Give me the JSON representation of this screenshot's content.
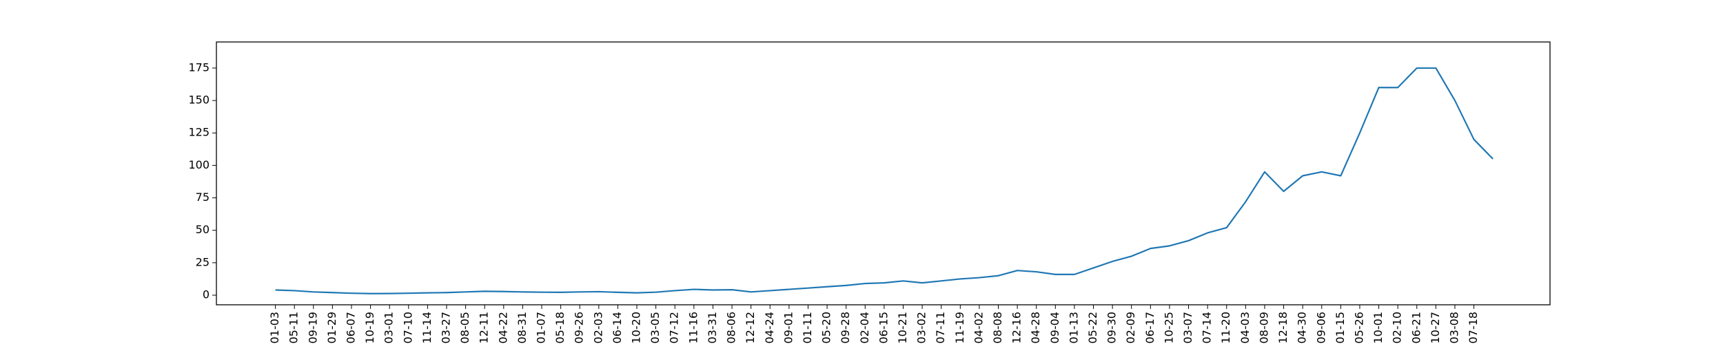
{
  "chart_data": {
    "type": "line",
    "color": "#1f77b4",
    "x": [
      0,
      1,
      2,
      3,
      4,
      5,
      6,
      7,
      8,
      9,
      10,
      11,
      12,
      13,
      14,
      15,
      16,
      17,
      18,
      19,
      20,
      21,
      22,
      23,
      24,
      25,
      26,
      27,
      28,
      29,
      30,
      31,
      32,
      33,
      34,
      35,
      36,
      37,
      38,
      39,
      40,
      41,
      42,
      43,
      44,
      45,
      46,
      47,
      48,
      49,
      50,
      51,
      52,
      53,
      54,
      55,
      56,
      57,
      58,
      59,
      60,
      61,
      62,
      63,
      64
    ],
    "values": [
      4,
      3.5,
      2.5,
      2,
      1.5,
      1.2,
      1.3,
      1.5,
      1.8,
      2,
      2.5,
      3,
      2.8,
      2.5,
      2.3,
      2.2,
      2.5,
      2.7,
      2.2,
      1.8,
      2.3,
      3.5,
      4.5,
      4,
      4.2,
      2.5,
      3.5,
      4.5,
      5.5,
      6.5,
      7.5,
      9,
      9.5,
      11,
      9.5,
      11,
      12.5,
      13.5,
      15,
      19,
      18,
      16,
      16,
      21,
      26,
      30,
      36,
      38,
      42,
      48,
      52,
      72,
      95,
      80,
      92,
      95,
      92,
      125,
      160,
      160,
      175,
      175,
      150,
      120,
      105
    ],
    "xlim": [
      -3.1,
      67.0
    ],
    "xticks": [
      {
        "value": 0,
        "label": "-01-03"
      },
      {
        "value": 1,
        "label": "-05-11"
      },
      {
        "value": 2,
        "label": "-09-19"
      },
      {
        "value": 3,
        "label": "-01-29"
      },
      {
        "value": 4,
        "label": "-06-07"
      },
      {
        "value": 5,
        "label": "-10-19"
      },
      {
        "value": 6,
        "label": "-03-01"
      },
      {
        "value": 7,
        "label": "-07-10"
      },
      {
        "value": 8,
        "label": "-11-14"
      },
      {
        "value": 9,
        "label": "-03-27"
      },
      {
        "value": 10,
        "label": "-08-05"
      },
      {
        "value": 11,
        "label": "-12-11"
      },
      {
        "value": 12,
        "label": "-04-22"
      },
      {
        "value": 13,
        "label": "-08-31"
      },
      {
        "value": 14,
        "label": "-01-07"
      },
      {
        "value": 15,
        "label": "-05-18"
      },
      {
        "value": 16,
        "label": "-09-26"
      },
      {
        "value": 17,
        "label": "-02-03"
      },
      {
        "value": 18,
        "label": "-06-14"
      },
      {
        "value": 19,
        "label": "-10-20"
      },
      {
        "value": 20,
        "label": "-03-05"
      },
      {
        "value": 21,
        "label": "-07-12"
      },
      {
        "value": 22,
        "label": "-11-16"
      },
      {
        "value": 23,
        "label": "-03-31"
      },
      {
        "value": 24,
        "label": "-08-06"
      },
      {
        "value": 25,
        "label": "-12-12"
      },
      {
        "value": 26,
        "label": "-04-24"
      },
      {
        "value": 27,
        "label": "-09-01"
      },
      {
        "value": 28,
        "label": "-01-11"
      },
      {
        "value": 29,
        "label": "-05-20"
      },
      {
        "value": 30,
        "label": "-09-28"
      },
      {
        "value": 31,
        "label": "-02-04"
      },
      {
        "value": 32,
        "label": "-06-15"
      },
      {
        "value": 33,
        "label": "-10-21"
      },
      {
        "value": 34,
        "label": "-03-02"
      },
      {
        "value": 35,
        "label": "-07-11"
      },
      {
        "value": 36,
        "label": "-11-19"
      },
      {
        "value": 37,
        "label": "-04-02"
      },
      {
        "value": 38,
        "label": "-08-08"
      },
      {
        "value": 39,
        "label": "-12-16"
      },
      {
        "value": 40,
        "label": "-04-28"
      },
      {
        "value": 41,
        "label": "-09-04"
      },
      {
        "value": 42,
        "label": "-01-13"
      },
      {
        "value": 43,
        "label": "-05-22"
      },
      {
        "value": 44,
        "label": "-09-30"
      },
      {
        "value": 45,
        "label": "-02-09"
      },
      {
        "value": 46,
        "label": "-06-17"
      },
      {
        "value": 47,
        "label": "-10-25"
      },
      {
        "value": 48,
        "label": "-03-07"
      },
      {
        "value": 49,
        "label": "-07-14"
      },
      {
        "value": 50,
        "label": "-11-20"
      },
      {
        "value": 51,
        "label": "-04-03"
      },
      {
        "value": 52,
        "label": "-08-09"
      },
      {
        "value": 53,
        "label": "-12-18"
      },
      {
        "value": 54,
        "label": "-04-30"
      },
      {
        "value": 55,
        "label": "-09-06"
      },
      {
        "value": 56,
        "label": "-01-15"
      },
      {
        "value": 57,
        "label": "-05-26"
      },
      {
        "value": 58,
        "label": "-10-01"
      },
      {
        "value": 59,
        "label": "-02-10"
      },
      {
        "value": 60,
        "label": "-06-21"
      },
      {
        "value": 61,
        "label": "-10-27"
      },
      {
        "value": 62,
        "label": "-03-08"
      },
      {
        "value": 63,
        "label": "-07-18"
      }
    ],
    "ylim": [
      -7.4,
      195.1
    ],
    "yticks": [
      0,
      25,
      50,
      75,
      100,
      125,
      150,
      175
    ],
    "grid": false
  }
}
